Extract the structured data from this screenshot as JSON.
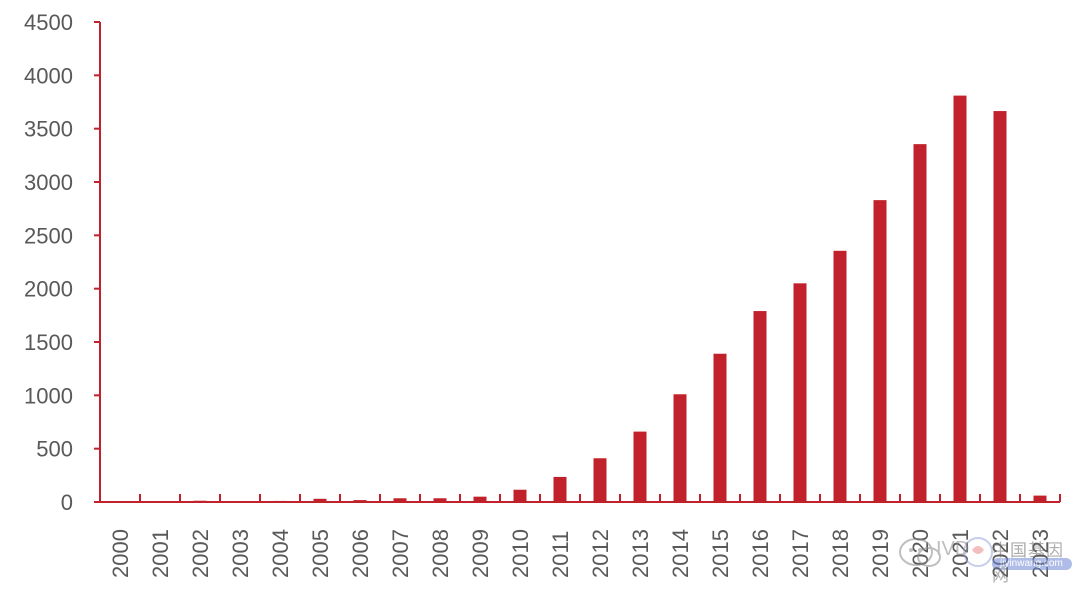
{
  "chart_data": {
    "type": "bar",
    "title": "",
    "xlabel": "",
    "ylabel": "",
    "categories": [
      "2000",
      "2001",
      "2002",
      "2003",
      "2004",
      "2005",
      "2006",
      "2007",
      "2008",
      "2009",
      "2010",
      "2011",
      "2012",
      "2013",
      "2014",
      "2015",
      "2016",
      "2017",
      "2018",
      "2019",
      "2020",
      "2021",
      "2022",
      "2023"
    ],
    "values": [
      5,
      8,
      12,
      5,
      10,
      30,
      18,
      35,
      35,
      50,
      115,
      235,
      410,
      660,
      1010,
      1390,
      1790,
      2050,
      2355,
      2830,
      3355,
      3810,
      3665,
      60
    ],
    "ylim": [
      0,
      4500
    ],
    "yticks": [
      "0",
      "500",
      "1000",
      "1500",
      "2000",
      "2500",
      "3000",
      "3500",
      "4000",
      "4500"
    ],
    "bar_color": "#c0212a",
    "axis_color": "#c0212a",
    "tick_label_color": "#595959",
    "grid": false,
    "legend": "none"
  },
  "watermark": {
    "text_cn": "中国基因网",
    "url": "jiyinwang.com",
    "brand": "IVD"
  }
}
